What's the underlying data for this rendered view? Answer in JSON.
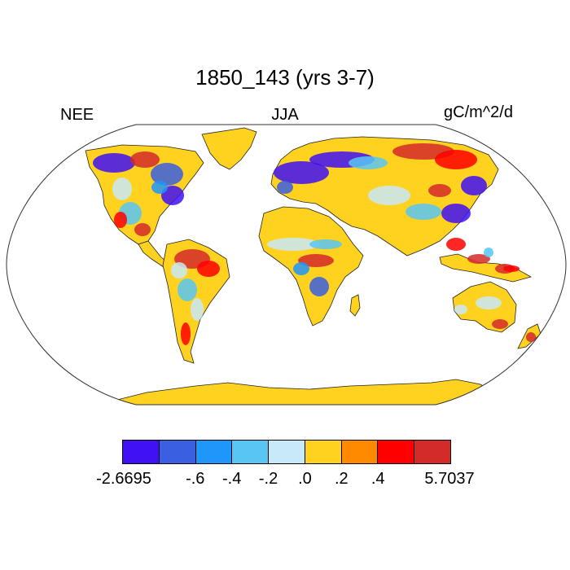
{
  "title": "1850_143 (yrs 3-7)",
  "left_label": "NEE",
  "center_label": "JJA",
  "right_label": "gC/m^2/d",
  "colors": {
    "ocean": "#ffffff",
    "land_default": "#ffd21f",
    "coast": "#222222",
    "outline": "#333333"
  },
  "colorbar": {
    "colors": [
      "#4011f5",
      "#3a5fe0",
      "#1f96fa",
      "#58c5f5",
      "#c8e9f8",
      "#ffd21f",
      "#ff8a00",
      "#ff0000",
      "#d32a2a"
    ],
    "labels": [
      "-2.6695",
      "-.6",
      "-.4",
      "-.2",
      ".0",
      ".2",
      ".4",
      "5.7037"
    ]
  }
}
